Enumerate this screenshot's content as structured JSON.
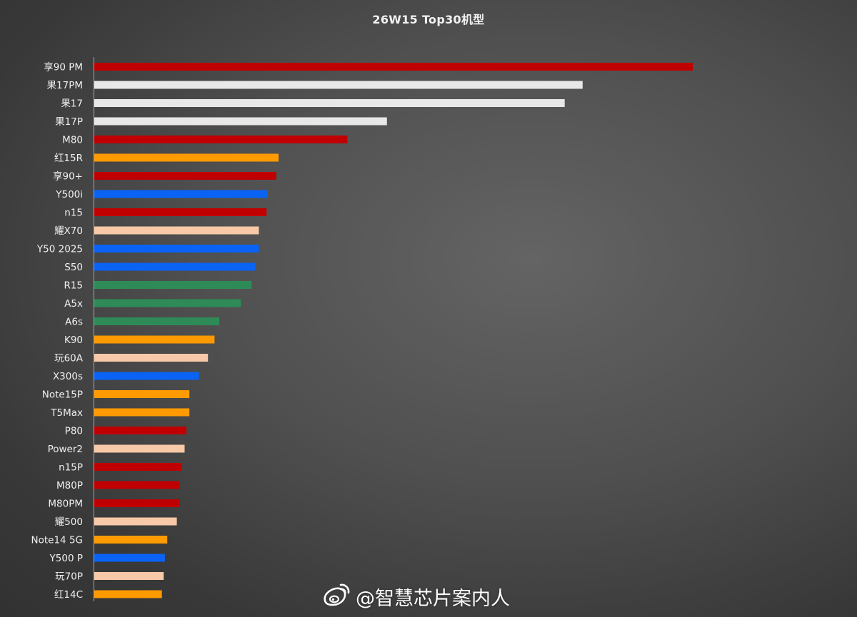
{
  "watermark": {
    "icon": "weibo-icon",
    "text": "@智慧芯片案内人"
  },
  "colors": {
    "red": "#c00000",
    "white": "#e8e8e8",
    "orange": "#ff9a00",
    "blue": "#0a63f5",
    "peach": "#f7c9a8",
    "green": "#2e8b57"
  },
  "chart_data": {
    "type": "bar",
    "orientation": "horizontal",
    "title": "26W15 Top30机型",
    "xlabel": "",
    "ylabel": "",
    "xlim": [
      0,
      100
    ],
    "grid": false,
    "categories": [
      "享90 PM",
      "果17PM",
      "果17",
      "果17P",
      "M80",
      "红15R",
      "享90+",
      "Y500i",
      "n15",
      "耀X70",
      "Y50 2025",
      "S50",
      "R15",
      "A5x",
      "A6s",
      "K90",
      "玩60A",
      "X300s",
      "Note15P",
      "T5Max",
      "P80",
      "Power2",
      "n15P",
      "M80P",
      "M80PM",
      "耀500",
      "Note14 5G",
      "Y500 P",
      "玩70P",
      "红14C"
    ],
    "values": [
      100.0,
      81.6,
      78.6,
      48.9,
      42.3,
      30.8,
      30.4,
      29.0,
      28.8,
      27.5,
      27.5,
      26.9,
      26.3,
      24.5,
      20.9,
      20.1,
      19.0,
      17.5,
      15.9,
      15.9,
      15.4,
      15.1,
      14.6,
      14.3,
      14.3,
      13.8,
      12.2,
      11.8,
      11.6,
      11.3
    ],
    "bar_colors": [
      "red",
      "white",
      "white",
      "white",
      "red",
      "orange",
      "red",
      "blue",
      "red",
      "peach",
      "blue",
      "blue",
      "green",
      "green",
      "green",
      "orange",
      "peach",
      "blue",
      "orange",
      "orange",
      "red",
      "peach",
      "red",
      "red",
      "red",
      "peach",
      "orange",
      "blue",
      "peach",
      "orange"
    ]
  }
}
